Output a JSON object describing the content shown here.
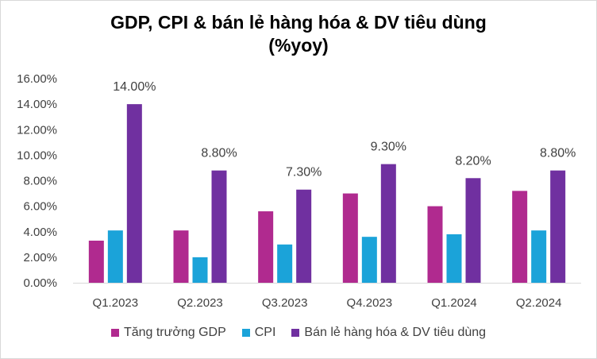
{
  "chart_data": {
    "type": "bar",
    "title_line1": "GDP, CPI & bán lẻ hàng hóa & DV tiêu dùng",
    "title_line2": "(%yoy)",
    "categories": [
      "Q1.2023",
      "Q2.2023",
      "Q3.2023",
      "Q4.2023",
      "Q1.2024",
      "Q2.2024"
    ],
    "series": [
      {
        "name": "Tăng trưởng GDP",
        "color": "#b02a8f",
        "values": [
          3.3,
          4.1,
          5.6,
          7.0,
          6.0,
          7.2
        ]
      },
      {
        "name": "CPI",
        "color": "#1ba3d9",
        "values": [
          4.1,
          2.0,
          3.0,
          3.6,
          3.8,
          4.1
        ]
      },
      {
        "name": "Bán lẻ hàng hóa & DV tiêu dùng",
        "color": "#7030a0",
        "values": [
          14.0,
          8.8,
          7.3,
          9.3,
          8.2,
          8.8
        ]
      }
    ],
    "data_labels": [
      "14.00%",
      "8.80%",
      "7.30%",
      "9.30%",
      "8.20%",
      "8.80%"
    ],
    "ylim": [
      0,
      16
    ],
    "yticks": [
      0,
      2,
      4,
      6,
      8,
      10,
      12,
      14,
      16
    ],
    "ytick_labels": [
      "0.00%",
      "2.00%",
      "4.00%",
      "6.00%",
      "8.00%",
      "10.00%",
      "12.00%",
      "14.00%",
      "16.00%"
    ],
    "xlabel": "",
    "ylabel": "",
    "grid": false,
    "legend_position": "bottom"
  }
}
